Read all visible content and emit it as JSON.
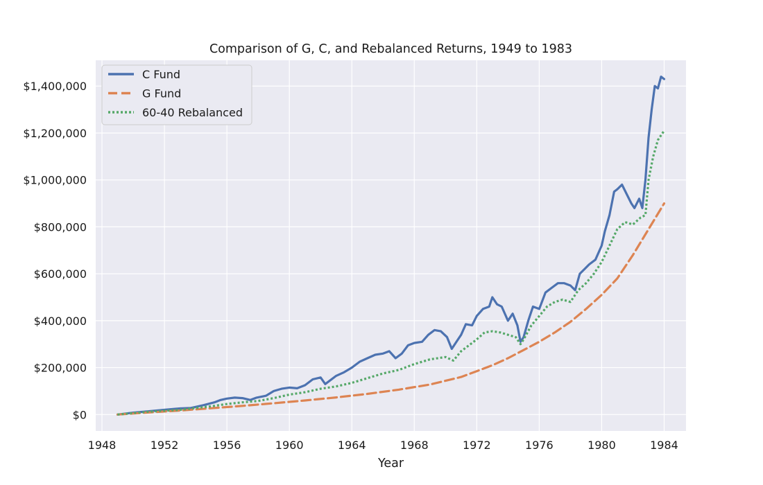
{
  "chart_data": {
    "type": "line",
    "title": "Comparison of G, C, and Rebalanced Returns, 1949 to 1983",
    "xlabel": "Year",
    "ylabel": "",
    "xlim": [
      1947.6,
      1985.4
    ],
    "ylim": [
      -70000,
      1510000
    ],
    "x_ticks": [
      1948,
      1952,
      1956,
      1960,
      1964,
      1968,
      1972,
      1976,
      1980,
      1984
    ],
    "x_tick_labels": [
      "1948",
      "1952",
      "1956",
      "1960",
      "1964",
      "1968",
      "1972",
      "1976",
      "1980",
      "1984"
    ],
    "y_ticks": [
      0,
      200000,
      400000,
      600000,
      800000,
      1000000,
      1200000,
      1400000
    ],
    "y_tick_labels": [
      "$0",
      "$200,000",
      "$400,000",
      "$600,000",
      "$800,000",
      "$1,000,000",
      "$1,200,000",
      "$1,400,000"
    ],
    "grid": true,
    "legend_position": "top-left",
    "background": "#eaeaf2",
    "series": [
      {
        "name": "C Fund",
        "color": "#4c72b0",
        "style": "solid",
        "x": [
          1949.0,
          1950.0,
          1951.0,
          1952.0,
          1953.0,
          1953.7,
          1954.5,
          1955.2,
          1955.6,
          1956.0,
          1956.5,
          1957.0,
          1957.5,
          1957.9,
          1958.5,
          1959.0,
          1959.5,
          1960.0,
          1960.5,
          1961.0,
          1961.5,
          1962.0,
          1962.3,
          1962.6,
          1963.0,
          1963.5,
          1964.0,
          1964.5,
          1965.0,
          1965.5,
          1966.0,
          1966.4,
          1966.8,
          1967.2,
          1967.6,
          1968.0,
          1968.5,
          1968.9,
          1969.3,
          1969.7,
          1970.1,
          1970.4,
          1970.8,
          1971.0,
          1971.3,
          1971.7,
          1972.0,
          1972.4,
          1972.8,
          1973.0,
          1973.3,
          1973.6,
          1974.0,
          1974.3,
          1974.6,
          1974.8,
          1975.0,
          1975.3,
          1975.6,
          1976.0,
          1976.4,
          1976.8,
          1977.2,
          1977.6,
          1978.0,
          1978.3,
          1978.6,
          1978.9,
          1979.2,
          1979.6,
          1980.0,
          1980.2,
          1980.5,
          1980.8,
          1981.0,
          1981.3,
          1981.6,
          1981.9,
          1982.1,
          1982.4,
          1982.6,
          1982.8,
          1983.0,
          1983.2,
          1983.4,
          1983.6,
          1983.8,
          1984.0
        ],
        "values": [
          0,
          8000,
          14000,
          20000,
          26000,
          28000,
          40000,
          52000,
          62000,
          68000,
          72000,
          70000,
          62000,
          72000,
          80000,
          100000,
          110000,
          115000,
          112000,
          125000,
          150000,
          158000,
          130000,
          145000,
          165000,
          180000,
          200000,
          225000,
          240000,
          255000,
          260000,
          270000,
          240000,
          260000,
          295000,
          305000,
          310000,
          340000,
          360000,
          355000,
          330000,
          280000,
          320000,
          340000,
          385000,
          380000,
          420000,
          450000,
          460000,
          500000,
          470000,
          460000,
          400000,
          430000,
          380000,
          310000,
          330000,
          400000,
          460000,
          450000,
          520000,
          540000,
          560000,
          560000,
          550000,
          530000,
          600000,
          620000,
          640000,
          660000,
          720000,
          780000,
          850000,
          950000,
          960000,
          980000,
          940000,
          900000,
          880000,
          920000,
          880000,
          1000000,
          1180000,
          1300000,
          1400000,
          1390000,
          1440000,
          1430000
        ]
      },
      {
        "name": "G Fund",
        "color": "#dd8452",
        "style": "dashed",
        "x": [
          1949.0,
          1951.0,
          1953.0,
          1955.0,
          1957.0,
          1959.0,
          1961.0,
          1963.0,
          1965.0,
          1967.0,
          1969.0,
          1971.0,
          1972.0,
          1973.0,
          1974.0,
          1975.0,
          1976.0,
          1977.0,
          1978.0,
          1979.0,
          1980.0,
          1981.0,
          1982.0,
          1983.0,
          1984.0
        ],
        "values": [
          0,
          9000,
          17000,
          27000,
          37000,
          48000,
          60000,
          73000,
          88000,
          106000,
          128000,
          160000,
          185000,
          210000,
          240000,
          275000,
          310000,
          350000,
          395000,
          450000,
          510000,
          580000,
          680000,
          790000,
          900000
        ]
      },
      {
        "name": "60-40 Rebalanced",
        "color": "#55a868",
        "style": "dotted",
        "x": [
          1949.0,
          1951.0,
          1953.0,
          1955.0,
          1956.0,
          1957.0,
          1958.0,
          1959.0,
          1960.0,
          1961.0,
          1962.0,
          1963.0,
          1964.0,
          1965.0,
          1966.0,
          1967.0,
          1968.0,
          1969.0,
          1970.0,
          1970.5,
          1971.0,
          1971.5,
          1972.0,
          1972.5,
          1973.0,
          1973.5,
          1974.0,
          1974.5,
          1974.8,
          1975.0,
          1975.5,
          1976.0,
          1976.5,
          1977.0,
          1977.5,
          1978.0,
          1978.5,
          1979.0,
          1979.5,
          1980.0,
          1980.5,
          1981.0,
          1981.5,
          1982.0,
          1982.5,
          1982.8,
          1983.0,
          1983.3,
          1983.6,
          1984.0
        ],
        "values": [
          0,
          12000,
          20000,
          35000,
          45000,
          52000,
          58000,
          70000,
          85000,
          95000,
          110000,
          120000,
          135000,
          155000,
          175000,
          190000,
          215000,
          235000,
          245000,
          230000,
          270000,
          295000,
          320000,
          350000,
          355000,
          350000,
          340000,
          330000,
          300000,
          320000,
          380000,
          420000,
          460000,
          480000,
          490000,
          480000,
          530000,
          560000,
          600000,
          650000,
          720000,
          790000,
          820000,
          810000,
          840000,
          850000,
          1000000,
          1100000,
          1170000,
          1210000
        ]
      }
    ]
  }
}
